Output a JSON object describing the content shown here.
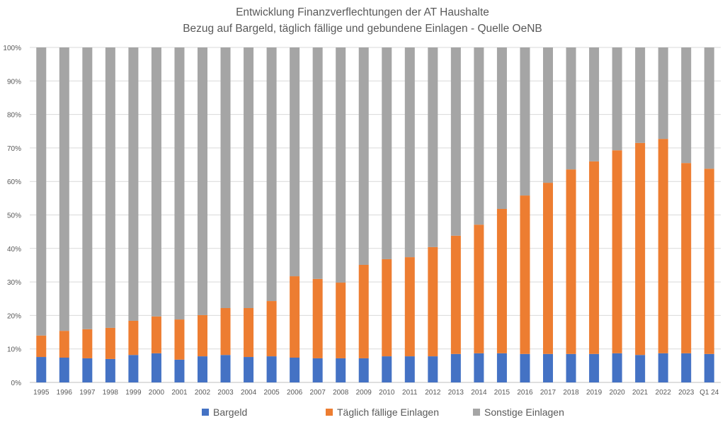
{
  "chart_data": {
    "type": "bar",
    "stacked": true,
    "normalized": true,
    "title": "Entwicklung Finanzverflechtungen der AT Haushalte",
    "subtitle": "Bezug auf Bargeld, täglich fällige und gebundene Einlagen - Quelle OeNB",
    "xlabel": "",
    "ylabel": "",
    "ylim": [
      0,
      100
    ],
    "yticks": [
      "0%",
      "10%",
      "20%",
      "30%",
      "40%",
      "50%",
      "60%",
      "70%",
      "80%",
      "90%",
      "100%"
    ],
    "grid": true,
    "legend_position": "bottom",
    "categories": [
      "1995",
      "1996",
      "1997",
      "1998",
      "1999",
      "2000",
      "2001",
      "2002",
      "2003",
      "2004",
      "2005",
      "2006",
      "2007",
      "2008",
      "2009",
      "2010",
      "2011",
      "2012",
      "2013",
      "2014",
      "2015",
      "2016",
      "2017",
      "2018",
      "2019",
      "2020",
      "2021",
      "2022",
      "2023",
      "Q1 24"
    ],
    "series": [
      {
        "name": "Bargeld",
        "color": "#4472C4",
        "values": [
          7.6,
          7.4,
          7.2,
          7.0,
          8.2,
          8.7,
          6.8,
          7.8,
          8.2,
          7.6,
          7.8,
          7.4,
          7.2,
          7.2,
          7.2,
          7.8,
          7.8,
          7.8,
          8.5,
          8.7,
          8.7,
          8.5,
          8.5,
          8.5,
          8.5,
          8.7,
          8.2,
          8.7,
          8.7,
          8.5
        ]
      },
      {
        "name": "Täglich fällige Einlagen",
        "color": "#ED7D31",
        "values": [
          6.4,
          8.0,
          8.7,
          9.3,
          10.2,
          11.0,
          12.0,
          12.3,
          14.0,
          14.6,
          16.5,
          24.3,
          23.7,
          22.6,
          27.9,
          29.0,
          29.6,
          32.6,
          35.3,
          38.4,
          43.1,
          47.3,
          51.1,
          55.1,
          57.5,
          60.6,
          63.3,
          64.0,
          56.8,
          55.3
        ]
      },
      {
        "name": "Sonstige Einlagen",
        "color": "#A5A5A5",
        "values": [
          86.0,
          84.6,
          84.1,
          83.7,
          81.6,
          80.3,
          81.2,
          79.9,
          77.8,
          77.8,
          75.7,
          68.3,
          69.1,
          70.2,
          64.9,
          63.2,
          62.6,
          59.6,
          56.2,
          52.9,
          48.2,
          44.2,
          40.4,
          36.4,
          34.0,
          30.7,
          28.5,
          27.3,
          34.5,
          36.2
        ]
      }
    ]
  }
}
